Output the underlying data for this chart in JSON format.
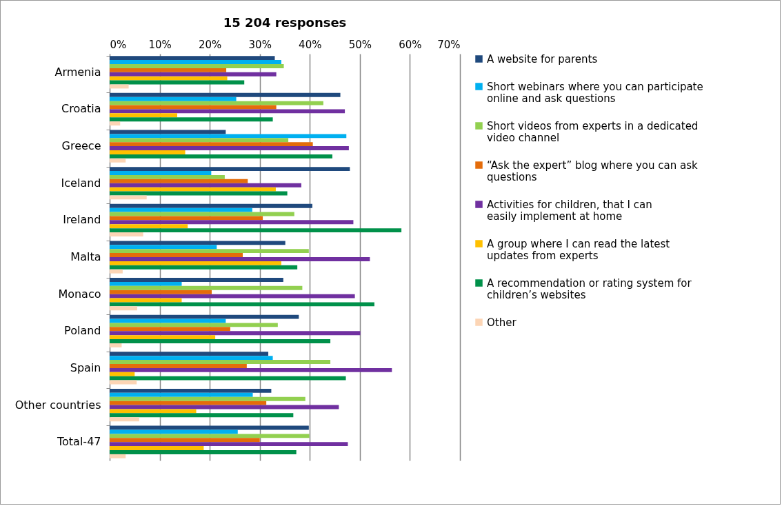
{
  "chart_data": {
    "type": "bar",
    "orientation": "horizontal",
    "title": "15 204 responses",
    "categories": [
      "Armenia",
      "Croatia",
      "Greece",
      "Iceland",
      "Ireland",
      "Malta",
      "Monaco",
      "Poland",
      "Spain",
      "Other countries",
      "Total-47"
    ],
    "xlim": [
      0,
      70
    ],
    "xticks": [
      {
        "value": 0,
        "label": "0%"
      },
      {
        "value": 10,
        "label": "10%"
      },
      {
        "value": 20,
        "label": "20%"
      },
      {
        "value": 30,
        "label": "30%"
      },
      {
        "value": 40,
        "label": "40%"
      },
      {
        "value": 50,
        "label": "50%"
      },
      {
        "value": 60,
        "label": "60%"
      },
      {
        "value": 70,
        "label": "70%"
      }
    ],
    "grid": "x",
    "legend": "right",
    "series": [
      {
        "name": "A website for parents",
        "color": "#1f497d",
        "values": [
          33.0,
          46.1,
          23.2,
          48.0,
          40.5,
          35.1,
          34.7,
          37.8,
          31.7,
          32.3,
          39.8
        ]
      },
      {
        "name": "Short webinars where you can participate online and ask questions",
        "color": "#00b0f0",
        "values": [
          34.3,
          25.3,
          47.3,
          20.3,
          28.5,
          21.4,
          14.4,
          23.2,
          32.6,
          28.6,
          25.6
        ]
      },
      {
        "name": "Short videos from experts in a dedicated video channel",
        "color": "#92d050",
        "values": [
          34.8,
          42.7,
          35.7,
          23.0,
          36.9,
          39.8,
          38.5,
          33.6,
          44.1,
          39.1,
          39.9
        ]
      },
      {
        "name": "“Ask the expert” blog where you can ask questions",
        "color": "#e46c0a",
        "values": [
          23.3,
          33.3,
          40.6,
          27.6,
          30.6,
          26.6,
          20.4,
          24.1,
          27.4,
          31.3,
          30.0
        ]
      },
      {
        "name": "Activities for children, that I can easily implement at home",
        "color": "#7030a0",
        "values": [
          33.3,
          47.0,
          47.8,
          38.3,
          48.7,
          52.0,
          49.0,
          50.1,
          56.4,
          45.8,
          47.6
        ]
      },
      {
        "name": "A group where I can read the latest updates from experts",
        "color": "#ffc000",
        "values": [
          23.5,
          13.5,
          15.1,
          33.2,
          15.6,
          34.3,
          14.4,
          21.1,
          5.0,
          17.3,
          18.8
        ]
      },
      {
        "name": "A recommendation or rating system for children’s websites",
        "color": "#00914a",
        "values": [
          26.9,
          32.6,
          44.5,
          35.5,
          58.3,
          37.5,
          52.9,
          44.1,
          47.2,
          36.7,
          37.3
        ]
      },
      {
        "name": "Other",
        "color": "#fcd5b5",
        "values": [
          3.8,
          2.1,
          3.2,
          7.4,
          6.7,
          2.6,
          5.5,
          2.4,
          5.4,
          5.9,
          3.2
        ]
      }
    ]
  }
}
